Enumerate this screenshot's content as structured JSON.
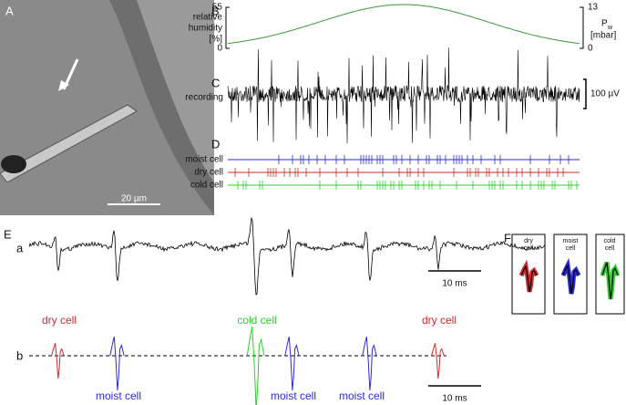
{
  "panels": {
    "A": {
      "label": "A",
      "scale_bar": "20 µm"
    },
    "B": {
      "label": "B",
      "left_axis_label": [
        "relative",
        "humidity",
        "[%]"
      ],
      "left_ticks": [
        "55",
        "0"
      ],
      "right_axis_label": [
        "P",
        "w",
        "[mbar]"
      ],
      "right_ticks": [
        "13",
        "0"
      ]
    },
    "C": {
      "label": "C",
      "trace_label": "recording",
      "scale_bar": "100 µV"
    },
    "D": {
      "label": "D",
      "rows": [
        "moist cell",
        "dry cell",
        "cold cell"
      ]
    },
    "E": {
      "label": "E",
      "a": "a",
      "b": "b",
      "scale_bar_a": "10 ms",
      "scale_bar_b": "10 ms",
      "spike_labels": [
        "dry cell",
        "moist cell",
        "cold cell",
        "moist cell",
        "moist cell",
        "dry cell"
      ]
    },
    "F": {
      "label": "F",
      "boxes": [
        [
          "dry",
          "cell"
        ],
        [
          "moist",
          "cell"
        ],
        [
          "cold",
          "cell"
        ]
      ]
    }
  }
}
